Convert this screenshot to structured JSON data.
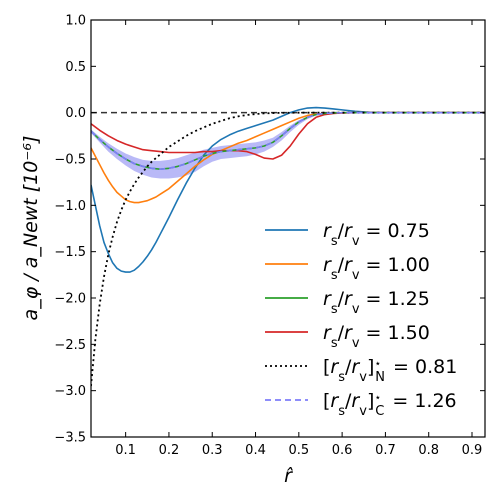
{
  "chart_data": {
    "type": "line",
    "xlabel": "r̂",
    "ylabel": "a_φ / a_Newt [10⁻⁶]",
    "xlim": [
      0.02,
      0.93
    ],
    "ylim": [
      -3.5,
      1.0
    ],
    "xticks": [
      "0.1",
      "0.2",
      "0.3",
      "0.4",
      "0.5",
      "0.6",
      "0.7",
      "0.8",
      "0.9"
    ],
    "yticks": [
      "1.0",
      "0.5",
      "0.0",
      "−0.5",
      "−1.0",
      "−1.5",
      "−2.0",
      "−2.5",
      "−3.0",
      "−3.5"
    ],
    "reference_line": {
      "y": 0.0,
      "style": "dashed",
      "color": "#333333"
    },
    "legend_placement": "lower-right",
    "series": [
      {
        "name": "r_s/r_v = 0.75",
        "color": "#1f77b4",
        "style": "solid",
        "x": [
          0.02,
          0.03,
          0.04,
          0.05,
          0.06,
          0.07,
          0.08,
          0.09,
          0.1,
          0.11,
          0.12,
          0.13,
          0.14,
          0.15,
          0.16,
          0.17,
          0.18,
          0.19,
          0.2,
          0.22,
          0.24,
          0.26,
          0.28,
          0.3,
          0.32,
          0.34,
          0.36,
          0.38,
          0.4,
          0.42,
          0.44,
          0.46,
          0.48,
          0.5,
          0.52,
          0.54,
          0.56,
          0.58,
          0.6,
          0.63,
          0.66,
          0.7,
          0.75,
          0.8,
          0.85,
          0.9,
          0.93
        ],
        "y": [
          -0.78,
          -1.0,
          -1.22,
          -1.4,
          -1.52,
          -1.62,
          -1.68,
          -1.71,
          -1.72,
          -1.72,
          -1.7,
          -1.66,
          -1.61,
          -1.55,
          -1.48,
          -1.4,
          -1.31,
          -1.22,
          -1.13,
          -0.94,
          -0.76,
          -0.6,
          -0.46,
          -0.36,
          -0.29,
          -0.24,
          -0.2,
          -0.17,
          -0.14,
          -0.11,
          -0.08,
          -0.04,
          0.0,
          0.03,
          0.05,
          0.055,
          0.05,
          0.04,
          0.03,
          0.015,
          0.005,
          0.0,
          0.0,
          0.0,
          0.0,
          0.0,
          0.0
        ]
      },
      {
        "name": "r_s/r_v = 1.00",
        "color": "#ff7f0e",
        "style": "solid",
        "x": [
          0.02,
          0.03,
          0.04,
          0.05,
          0.06,
          0.07,
          0.08,
          0.09,
          0.1,
          0.11,
          0.12,
          0.13,
          0.14,
          0.15,
          0.16,
          0.17,
          0.18,
          0.19,
          0.2,
          0.22,
          0.24,
          0.26,
          0.28,
          0.3,
          0.32,
          0.34,
          0.36,
          0.38,
          0.4,
          0.42,
          0.44,
          0.46,
          0.48,
          0.5,
          0.52,
          0.54,
          0.56,
          0.58,
          0.6,
          0.63,
          0.66,
          0.7,
          0.75,
          0.8,
          0.85,
          0.9,
          0.93
        ],
        "y": [
          -0.38,
          -0.47,
          -0.56,
          -0.65,
          -0.73,
          -0.8,
          -0.86,
          -0.9,
          -0.94,
          -0.96,
          -0.97,
          -0.97,
          -0.96,
          -0.95,
          -0.93,
          -0.91,
          -0.88,
          -0.85,
          -0.82,
          -0.74,
          -0.66,
          -0.58,
          -0.51,
          -0.45,
          -0.41,
          -0.37,
          -0.33,
          -0.3,
          -0.26,
          -0.22,
          -0.18,
          -0.14,
          -0.1,
          -0.06,
          -0.03,
          -0.015,
          -0.008,
          -0.004,
          -0.002,
          0.0,
          0.0,
          0.0,
          0.0,
          0.0,
          0.0,
          0.0,
          0.0
        ]
      },
      {
        "name": "r_s/r_v = 1.25",
        "color": "#2ca02c",
        "style": "solid",
        "x": [
          0.02,
          0.04,
          0.06,
          0.08,
          0.1,
          0.12,
          0.14,
          0.16,
          0.18,
          0.2,
          0.22,
          0.24,
          0.26,
          0.28,
          0.3,
          0.32,
          0.34,
          0.36,
          0.38,
          0.4,
          0.42,
          0.44,
          0.46,
          0.48,
          0.5,
          0.52,
          0.54,
          0.56,
          0.58,
          0.6,
          0.63,
          0.66,
          0.7,
          0.75,
          0.8,
          0.85,
          0.9,
          0.93
        ],
        "y": [
          -0.2,
          -0.29,
          -0.37,
          -0.44,
          -0.5,
          -0.55,
          -0.58,
          -0.6,
          -0.61,
          -0.6,
          -0.58,
          -0.55,
          -0.51,
          -0.47,
          -0.44,
          -0.42,
          -0.41,
          -0.4,
          -0.39,
          -0.38,
          -0.36,
          -0.32,
          -0.25,
          -0.17,
          -0.1,
          -0.05,
          -0.02,
          -0.008,
          -0.003,
          -0.001,
          0.0,
          0.0,
          0.0,
          0.0,
          0.0,
          0.0,
          0.0,
          0.0
        ]
      },
      {
        "name": "r_s/r_v = 1.50",
        "color": "#d62728",
        "style": "solid",
        "x": [
          0.02,
          0.04,
          0.06,
          0.08,
          0.1,
          0.12,
          0.14,
          0.16,
          0.18,
          0.2,
          0.22,
          0.24,
          0.26,
          0.28,
          0.3,
          0.32,
          0.34,
          0.36,
          0.38,
          0.4,
          0.42,
          0.44,
          0.46,
          0.48,
          0.5,
          0.52,
          0.54,
          0.56,
          0.58,
          0.6,
          0.63,
          0.66,
          0.7,
          0.75,
          0.8,
          0.85,
          0.9,
          0.93
        ],
        "y": [
          -0.12,
          -0.19,
          -0.25,
          -0.3,
          -0.34,
          -0.37,
          -0.4,
          -0.41,
          -0.42,
          -0.43,
          -0.43,
          -0.43,
          -0.43,
          -0.42,
          -0.42,
          -0.41,
          -0.41,
          -0.41,
          -0.42,
          -0.45,
          -0.49,
          -0.5,
          -0.46,
          -0.36,
          -0.23,
          -0.12,
          -0.05,
          -0.02,
          -0.008,
          -0.003,
          0.0,
          0.0,
          0.0,
          0.0,
          0.0,
          0.0,
          0.0,
          0.0
        ]
      },
      {
        "name": "[r_s/r_v]*_N = 0.81",
        "color": "#000000",
        "style": "dotted",
        "x": [
          0.02,
          0.03,
          0.04,
          0.05,
          0.06,
          0.07,
          0.08,
          0.09,
          0.1,
          0.11,
          0.12,
          0.13,
          0.14,
          0.15,
          0.16,
          0.18,
          0.2,
          0.22,
          0.24,
          0.26,
          0.28,
          0.3,
          0.32,
          0.34,
          0.36,
          0.38,
          0.4,
          0.42,
          0.44,
          0.46,
          0.48,
          0.5,
          0.55,
          0.6,
          0.7,
          0.8,
          0.93
        ],
        "y": [
          -2.95,
          -2.45,
          -2.07,
          -1.77,
          -1.53,
          -1.34,
          -1.18,
          -1.05,
          -0.94,
          -0.85,
          -0.77,
          -0.7,
          -0.64,
          -0.58,
          -0.53,
          -0.45,
          -0.37,
          -0.31,
          -0.25,
          -0.2,
          -0.16,
          -0.12,
          -0.09,
          -0.06,
          -0.04,
          -0.025,
          -0.015,
          -0.008,
          -0.004,
          -0.002,
          -0.001,
          0.0,
          0.0,
          0.0,
          0.0,
          0.0,
          0.0
        ]
      },
      {
        "name": "[r_s/r_v]*_C = 1.26",
        "color": "#7d7dfa",
        "style": "dashed",
        "band_color": "#8080f0",
        "x": [
          0.02,
          0.04,
          0.06,
          0.08,
          0.1,
          0.12,
          0.14,
          0.16,
          0.18,
          0.2,
          0.22,
          0.24,
          0.26,
          0.28,
          0.3,
          0.32,
          0.34,
          0.36,
          0.38,
          0.4,
          0.42,
          0.44,
          0.46,
          0.48,
          0.5,
          0.52,
          0.54,
          0.56,
          0.58,
          0.6,
          0.63,
          0.66,
          0.7,
          0.75,
          0.8,
          0.85,
          0.9,
          0.93
        ],
        "y": [
          -0.2,
          -0.29,
          -0.37,
          -0.44,
          -0.5,
          -0.55,
          -0.58,
          -0.6,
          -0.61,
          -0.6,
          -0.58,
          -0.55,
          -0.51,
          -0.47,
          -0.44,
          -0.42,
          -0.41,
          -0.4,
          -0.39,
          -0.38,
          -0.36,
          -0.32,
          -0.25,
          -0.17,
          -0.1,
          -0.05,
          -0.02,
          -0.008,
          -0.003,
          -0.001,
          0.0,
          0.0,
          0.0,
          0.0,
          0.0,
          0.0,
          0.0,
          0.0
        ],
        "y_low": [
          -0.22,
          -0.32,
          -0.42,
          -0.5,
          -0.57,
          -0.63,
          -0.67,
          -0.7,
          -0.71,
          -0.71,
          -0.7,
          -0.68,
          -0.64,
          -0.58,
          -0.53,
          -0.5,
          -0.49,
          -0.48,
          -0.47,
          -0.45,
          -0.42,
          -0.37,
          -0.3,
          -0.21,
          -0.13,
          -0.07,
          -0.03,
          -0.012,
          -0.004,
          -0.001,
          0.0,
          0.0,
          0.0,
          0.0,
          0.0,
          0.0,
          0.0,
          0.0
        ],
        "y_high": [
          -0.18,
          -0.26,
          -0.33,
          -0.39,
          -0.44,
          -0.48,
          -0.51,
          -0.52,
          -0.52,
          -0.51,
          -0.49,
          -0.46,
          -0.43,
          -0.4,
          -0.38,
          -0.36,
          -0.35,
          -0.34,
          -0.33,
          -0.32,
          -0.3,
          -0.27,
          -0.21,
          -0.14,
          -0.08,
          -0.04,
          -0.015,
          -0.005,
          -0.002,
          -0.001,
          0.0,
          0.0,
          0.0,
          0.0,
          0.0,
          0.0,
          0.0,
          0.0
        ]
      }
    ]
  }
}
